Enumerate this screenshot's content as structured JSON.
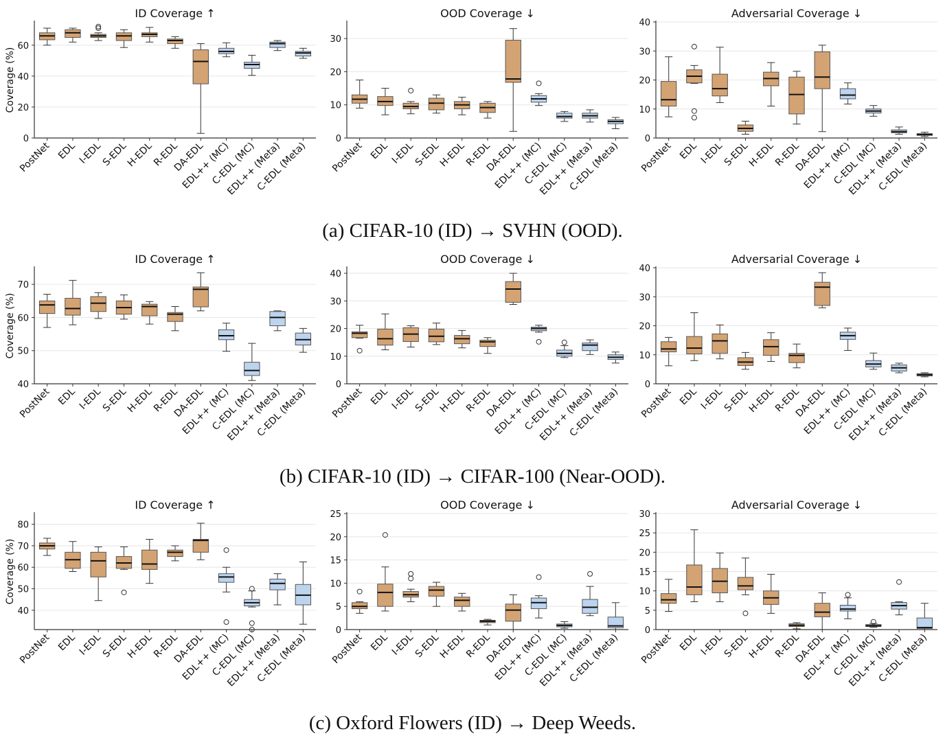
{
  "colors": {
    "edl_family": "#d4a373",
    "proposed_family": "#bcd4ee",
    "median": "#111111",
    "grid": "#e6e6e6"
  },
  "methods": [
    "PostNet",
    "EDL",
    "I-EDL",
    "S-EDL",
    "H-EDL",
    "R-EDL",
    "DA-EDL",
    "EDL++ (MC)",
    "C-EDL (MC)",
    "EDL++ (Meta)",
    "C-EDL (Meta)"
  ],
  "method_colors": [
    "edl_family",
    "edl_family",
    "edl_family",
    "edl_family",
    "edl_family",
    "edl_family",
    "edl_family",
    "proposed_family",
    "proposed_family",
    "proposed_family",
    "proposed_family"
  ],
  "captions": [
    "(a) CIFAR-10 (ID) → SVHN (OOD).",
    "(b) CIFAR-10 (ID) → CIFAR-100 (Near-OOD).",
    "(c) Oxford Flowers (ID) → Deep Weeds."
  ],
  "chart_data": [
    {
      "type": "box",
      "row": 0,
      "title": "ID Coverage  ↑",
      "ylabel": "Coverage (%)",
      "ylim": [
        0,
        75
      ],
      "yticks": [
        0,
        20,
        40,
        60
      ],
      "grid": true,
      "boxes": [
        [
          60,
          63.5,
          66,
          68,
          71
        ],
        [
          62,
          65,
          68,
          70,
          71
        ],
        [
          63,
          65,
          66,
          67,
          68
        ],
        [
          58.5,
          63,
          66,
          68,
          70
        ],
        [
          62,
          65.5,
          67,
          68,
          71.5
        ],
        [
          58,
          61,
          63,
          64,
          65.5
        ],
        [
          3,
          35,
          49.5,
          57,
          61
        ],
        [
          52.5,
          54.5,
          56,
          58,
          61.5
        ],
        [
          40.5,
          45,
          47.5,
          49,
          53.5
        ],
        [
          56.5,
          58.5,
          61,
          62,
          63
        ],
        [
          51.5,
          53,
          55,
          56,
          58
        ]
      ],
      "outliers": [
        [],
        [],
        [
          71,
          72
        ],
        [],
        [],
        [],
        [],
        [],
        [],
        [],
        []
      ]
    },
    {
      "type": "box",
      "row": 0,
      "title": "OOD Coverage  ↓",
      "ylabel": "",
      "ylim": [
        0,
        35
      ],
      "yticks": [
        0,
        10,
        20,
        30
      ],
      "grid": true,
      "boxes": [
        [
          9,
          10.5,
          11.7,
          13,
          17.5
        ],
        [
          7,
          9.8,
          11,
          12.5,
          15
        ],
        [
          7.3,
          8.8,
          9.5,
          10.5,
          11
        ],
        [
          7.5,
          8.5,
          10.5,
          12,
          13
        ],
        [
          7,
          8.8,
          10,
          11,
          12.3
        ],
        [
          6,
          7.7,
          9.2,
          10.5,
          11
        ],
        [
          2,
          16.8,
          17.8,
          29.5,
          33
        ],
        [
          9.8,
          10.8,
          11.8,
          12.8,
          13.4
        ],
        [
          5,
          6,
          6.5,
          7.5,
          8
        ],
        [
          4.8,
          6,
          6.7,
          7.5,
          8.5
        ],
        [
          2.8,
          4.3,
          5,
          5.5,
          6.2
        ]
      ],
      "outliers": [
        [],
        [],
        [
          14.3
        ],
        [],
        [],
        [],
        [],
        [
          16.5
        ],
        [],
        [],
        []
      ]
    },
    {
      "type": "box",
      "row": 0,
      "title": "Adversarial Coverage  ↓",
      "ylabel": "",
      "ylim": [
        0,
        40
      ],
      "yticks": [
        0,
        10,
        20,
        30,
        40
      ],
      "grid": true,
      "boxes": [
        [
          7.3,
          11,
          13.2,
          19.5,
          28
        ],
        [
          18.8,
          19,
          21.3,
          23.5,
          25
        ],
        [
          12.2,
          14.5,
          17,
          22,
          31.3
        ],
        [
          1.3,
          2.3,
          3.3,
          4.5,
          5.8
        ],
        [
          11,
          18,
          20.5,
          22.7,
          26
        ],
        [
          4.8,
          8.3,
          15,
          21,
          23
        ],
        [
          2.2,
          17,
          21,
          29.7,
          32
        ],
        [
          11.7,
          13.5,
          14.8,
          17,
          19
        ],
        [
          7.5,
          8.6,
          9.3,
          10,
          11.2
        ],
        [
          1.3,
          1.8,
          2.2,
          2.8,
          3.8
        ],
        [
          0.5,
          0.9,
          1.2,
          1.5,
          2
        ]
      ],
      "outliers": [
        [],
        [
          31.5,
          9.3,
          7
        ],
        [],
        [],
        [],
        [],
        [],
        [],
        [],
        [],
        []
      ]
    },
    {
      "type": "box",
      "row": 1,
      "title": "ID Coverage  ↑",
      "ylabel": "Coverage (%)",
      "ylim": [
        40,
        75
      ],
      "yticks": [
        40,
        50,
        60,
        70
      ],
      "grid": true,
      "boxes": [
        [
          57,
          61.2,
          63.8,
          65,
          67
        ],
        [
          57.8,
          60.7,
          62.7,
          65.8,
          71.2
        ],
        [
          59.7,
          61.8,
          64.3,
          66.3,
          67.5
        ],
        [
          59.5,
          61,
          63,
          65,
          66.8
        ],
        [
          58,
          60.5,
          63.3,
          64,
          64.8
        ],
        [
          56,
          58.8,
          61,
          61.5,
          63.3
        ],
        [
          62,
          63.2,
          68.5,
          69.2,
          73.5
        ],
        [
          49.8,
          53.3,
          54.5,
          56.3,
          58.3
        ],
        [
          41,
          42.5,
          44,
          46.5,
          52.2
        ],
        [
          56,
          57.5,
          60,
          61.8,
          62
        ],
        [
          49.5,
          51.7,
          53.3,
          55.3,
          56.7
        ]
      ],
      "outliers": [
        [],
        [],
        [],
        [],
        [],
        [],
        [],
        [],
        [],
        [],
        []
      ]
    },
    {
      "type": "box",
      "row": 1,
      "title": "OOD Coverage  ↓",
      "ylabel": "",
      "ylim": [
        0,
        42
      ],
      "yticks": [
        0,
        10,
        20,
        30,
        40
      ],
      "grid": true,
      "boxes": [
        [
          16.5,
          16.7,
          18.3,
          18.8,
          21.2
        ],
        [
          12.3,
          14,
          16.3,
          19.8,
          25.3
        ],
        [
          13.3,
          15.3,
          18,
          20.3,
          21
        ],
        [
          14.2,
          15.2,
          17.2,
          19.8,
          22
        ],
        [
          13,
          14.5,
          16.3,
          17.5,
          19.3
        ],
        [
          11,
          13.5,
          15.2,
          15.8,
          16.7
        ],
        [
          28.7,
          29.5,
          34.3,
          37,
          40
        ],
        [
          18.7,
          19.2,
          20,
          20.5,
          21.2
        ],
        [
          9.5,
          10,
          11,
          12.2,
          13.8
        ],
        [
          10.6,
          12,
          14,
          14.8,
          15.9
        ],
        [
          7.5,
          8.8,
          9.6,
          10.5,
          11.5
        ]
      ],
      "outliers": [
        [
          12
        ],
        [],
        [],
        [],
        [],
        [],
        [],
        [
          15.2
        ],
        [
          15
        ],
        [],
        []
      ]
    },
    {
      "type": "box",
      "row": 1,
      "title": "Adversarial Coverage  ↓",
      "ylabel": "",
      "ylim": [
        0,
        40
      ],
      "yticks": [
        0,
        10,
        20,
        30,
        40
      ],
      "grid": true,
      "boxes": [
        [
          6.2,
          11,
          12,
          14.5,
          16
        ],
        [
          8,
          10.3,
          12.3,
          16.3,
          24.5
        ],
        [
          8.6,
          10.5,
          14.8,
          17.2,
          20.3
        ],
        [
          5,
          6.3,
          7.5,
          9,
          10.8
        ],
        [
          7.7,
          9.8,
          12.8,
          15.2,
          17.6
        ],
        [
          5.5,
          7.3,
          9.8,
          10.5,
          13.7
        ],
        [
          26.2,
          27,
          33.3,
          35,
          38.3
        ],
        [
          11.5,
          15.3,
          16.6,
          17.8,
          19.2
        ],
        [
          5,
          5.8,
          6.8,
          8,
          10.6
        ],
        [
          3.8,
          4.4,
          5.5,
          6.5,
          7.1
        ],
        [
          2.4,
          2.7,
          3.1,
          3.5,
          3.8
        ]
      ],
      "outliers": [
        [],
        [],
        [],
        [],
        [],
        [],
        [],
        [],
        [],
        [],
        []
      ]
    },
    {
      "type": "box",
      "row": 2,
      "title": "ID Coverage  ↑",
      "ylabel": "Coverage (%)",
      "ylim": [
        31,
        85
      ],
      "yticks": [
        40,
        50,
        60,
        70,
        80
      ],
      "grid": true,
      "boxes": [
        [
          65.5,
          68.5,
          70,
          71.3,
          73.5
        ],
        [
          58,
          59.5,
          63.5,
          67,
          72
        ],
        [
          44.5,
          55.5,
          63,
          67,
          69.5
        ],
        [
          59,
          59.5,
          62,
          65,
          69.5
        ],
        [
          52.5,
          59,
          61.5,
          68,
          73
        ],
        [
          63,
          65,
          67,
          68,
          70
        ],
        [
          63.5,
          67,
          72.5,
          73,
          80.5
        ],
        [
          48.5,
          53,
          55.5,
          57,
          60
        ],
        [
          41.5,
          42,
          43.5,
          45,
          49
        ],
        [
          42.5,
          49.5,
          52.5,
          54.5,
          57
        ],
        [
          33.5,
          42.5,
          47,
          52,
          62.5
        ]
      ],
      "outliers": [
        [],
        [],
        [],
        [
          48.3
        ],
        [],
        [],
        [],
        [
          68,
          34.5
        ],
        [
          50,
          34,
          31
        ],
        [],
        []
      ]
    },
    {
      "type": "box",
      "row": 2,
      "title": "OOD Coverage  ↓",
      "ylabel": "",
      "ylim": [
        0,
        25
      ],
      "yticks": [
        0,
        5,
        10,
        15,
        20,
        25
      ],
      "grid": true,
      "boxes": [
        [
          3.5,
          4.5,
          5,
          5.8,
          6
        ],
        [
          4,
          5,
          8,
          9.8,
          13.5
        ],
        [
          6,
          7,
          7.5,
          8.2,
          8.7
        ],
        [
          5,
          7.2,
          8.5,
          9.3,
          10.2
        ],
        [
          4,
          5,
          6.3,
          7,
          7.8
        ],
        [
          1,
          1.5,
          1.8,
          2,
          2.2
        ],
        [
          0,
          1.8,
          4.2,
          5.5,
          7.5
        ],
        [
          2.5,
          4.5,
          5.8,
          6.8,
          7.3
        ],
        [
          0.3,
          0.6,
          0.9,
          1.2,
          1.7
        ],
        [
          3,
          3.5,
          4.8,
          6.5,
          9.3
        ],
        [
          0,
          0.4,
          0.8,
          2.7,
          5.8
        ]
      ],
      "outliers": [
        [
          8.2
        ],
        [
          20.4
        ],
        [
          11,
          12
        ],
        [],
        [],
        [],
        [],
        [
          11.3
        ],
        [],
        [
          12
        ],
        []
      ]
    },
    {
      "type": "box",
      "row": 2,
      "title": "Adversarial Coverage  ↓",
      "ylabel": "",
      "ylim": [
        0,
        30
      ],
      "yticks": [
        0,
        5,
        10,
        15,
        20,
        25,
        30
      ],
      "grid": true,
      "boxes": [
        [
          4.7,
          6.8,
          7.7,
          9.3,
          13
        ],
        [
          7.2,
          9,
          11,
          16.7,
          25.8
        ],
        [
          7.2,
          9.5,
          12.5,
          15.8,
          19.8
        ],
        [
          9,
          10.3,
          11.3,
          13.5,
          18.5
        ],
        [
          4.2,
          6.5,
          8.2,
          10,
          14.3
        ],
        [
          0.2,
          0.8,
          1.1,
          1.5,
          1.8
        ],
        [
          0,
          3.3,
          4.5,
          6.8,
          9.5
        ],
        [
          2.8,
          4.8,
          5.3,
          6.3,
          8.2
        ],
        [
          0.6,
          0.8,
          1,
          1.3,
          1.6
        ],
        [
          3.8,
          5.3,
          6.2,
          7,
          7.2
        ],
        [
          0,
          0.3,
          0.5,
          3,
          6.8
        ]
      ],
      "outliers": [
        [],
        [],
        [],
        [
          4.2
        ],
        [],
        [],
        [],
        [
          9
        ],
        [
          2
        ],
        [
          12.3
        ],
        []
      ]
    }
  ]
}
